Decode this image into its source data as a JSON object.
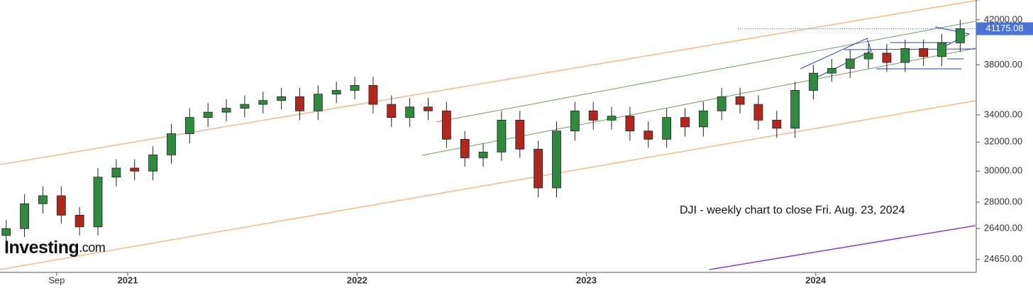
{
  "chart_data": {
    "type": "candlestick",
    "annotation": "DJI - weekly chart to close Fri. Aug. 23, 2024",
    "logo": {
      "name": "Investing",
      "suffix": ".com"
    },
    "last_price": {
      "value": 41175.08,
      "label": "41175.08"
    },
    "log_scale": true,
    "up_color": "#2e8b3d",
    "down_color": "#b3261e",
    "xlim": [
      2020.443,
      2024.7
    ],
    "xticks": [
      {
        "value": 2020.69,
        "label": "Sep"
      },
      {
        "value": 2021,
        "label": "2021"
      },
      {
        "value": 2022,
        "label": "2022"
      },
      {
        "value": 2023,
        "label": "2023"
      },
      {
        "value": 2024,
        "label": "2024"
      }
    ],
    "ylim": [
      23950,
      43890
    ],
    "yticks": [
      {
        "value": 24650,
        "label": "24650.00"
      },
      {
        "value": 26400,
        "label": "26400.00"
      },
      {
        "value": 28000,
        "label": "28000.00"
      },
      {
        "value": 30000,
        "label": "30000.00"
      },
      {
        "value": 32000,
        "label": "32000.00"
      },
      {
        "value": 34000,
        "label": "34000.00"
      },
      {
        "value": 38000,
        "label": "38000.00"
      },
      {
        "value": 42000,
        "label": "42000.00"
      }
    ],
    "x": [
      2020.47,
      2020.55,
      2020.63,
      2020.71,
      2020.79,
      2020.87,
      2020.95,
      2021.03,
      2021.11,
      2021.19,
      2021.27,
      2021.35,
      2021.43,
      2021.51,
      2021.59,
      2021.67,
      2021.75,
      2021.83,
      2021.91,
      2021.99,
      2022.07,
      2022.15,
      2022.23,
      2022.31,
      2022.39,
      2022.47,
      2022.55,
      2022.63,
      2022.71,
      2022.79,
      2022.87,
      2022.95,
      2023.03,
      2023.11,
      2023.19,
      2023.27,
      2023.35,
      2023.43,
      2023.51,
      2023.59,
      2023.67,
      2023.75,
      2023.83,
      2023.91,
      2023.99,
      2024.07,
      2024.15,
      2024.23,
      2024.31,
      2024.39,
      2024.47,
      2024.55,
      2024.63
    ],
    "open": [
      26000,
      26400,
      27900,
      28400,
      27200,
      26500,
      29600,
      30200,
      30000,
      31100,
      32600,
      33800,
      34200,
      34500,
      34800,
      35100,
      35400,
      34300,
      35600,
      35900,
      36300,
      34800,
      33800,
      34600,
      34300,
      32200,
      30900,
      31300,
      33600,
      31500,
      28900,
      32800,
      34300,
      33600,
      33900,
      32800,
      32200,
      33800,
      33100,
      34300,
      35400,
      34800,
      33600,
      33000,
      35900,
      37300,
      37700,
      38500,
      39000,
      38200,
      39400,
      38700,
      39900
    ],
    "high": [
      26900,
      28500,
      29000,
      29000,
      27700,
      30200,
      30800,
      30800,
      31700,
      33300,
      34500,
      34900,
      35200,
      35500,
      35800,
      36100,
      36100,
      36300,
      36600,
      37000,
      37000,
      35500,
      35300,
      35300,
      35000,
      32800,
      31900,
      34300,
      34300,
      32100,
      33500,
      35000,
      35000,
      34600,
      34600,
      33500,
      34500,
      34500,
      35000,
      36100,
      36100,
      35500,
      34300,
      36600,
      38000,
      38500,
      39300,
      39800,
      39800,
      40200,
      40200,
      40700,
      42000
    ],
    "low": [
      25500,
      25900,
      27300,
      26700,
      26000,
      26000,
      29000,
      29400,
      29400,
      30500,
      31900,
      33100,
      33500,
      33800,
      34100,
      34400,
      33600,
      33600,
      34900,
      35200,
      34100,
      33100,
      33100,
      33600,
      31600,
      30300,
      30300,
      30700,
      30900,
      28300,
      28300,
      32100,
      32900,
      32900,
      32100,
      31600,
      31600,
      32400,
      32400,
      33600,
      34100,
      32900,
      32300,
      32300,
      35200,
      36600,
      36900,
      37700,
      37400,
      37400,
      37900,
      37900,
      39100
    ],
    "close": [
      26400,
      27900,
      28400,
      27200,
      26500,
      29600,
      30200,
      30000,
      31100,
      32600,
      33800,
      34200,
      34500,
      34800,
      35100,
      35400,
      34300,
      35600,
      35900,
      36300,
      34800,
      33800,
      34600,
      34300,
      32200,
      30900,
      31300,
      33600,
      31500,
      28900,
      32800,
      34300,
      33600,
      33900,
      32800,
      32200,
      33800,
      33100,
      34300,
      35400,
      34800,
      33600,
      33000,
      35900,
      37300,
      37700,
      38500,
      39000,
      38200,
      39400,
      38700,
      39900,
      41175
    ]
  }
}
